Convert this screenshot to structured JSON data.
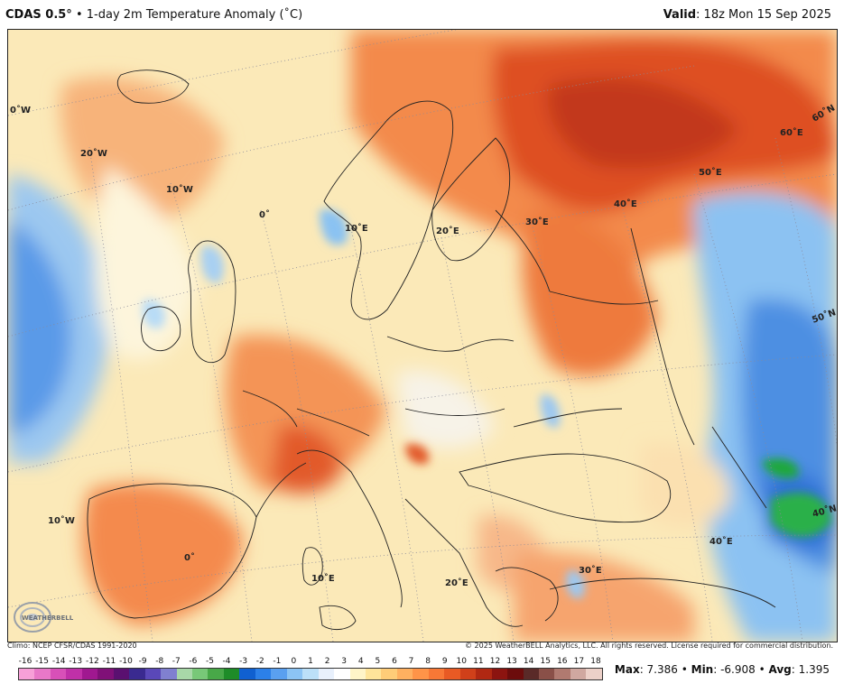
{
  "header": {
    "model": "CDAS 0.5°",
    "separator": "•",
    "product": "1-day 2m Temperature Anomaly (˚C)",
    "valid_label": "Valid",
    "valid_time": ": 18z Mon 15 Sep 2025"
  },
  "map": {
    "lon_labels": [
      "0˚W",
      "20˚W",
      "10˚W",
      "0˚",
      "10˚E",
      "20˚E",
      "30˚E",
      "40˚E",
      "50˚E",
      "60˚E",
      "60˚N",
      "50˚N",
      "40˚N",
      "10˚W",
      "0˚",
      "10˚E",
      "20˚E",
      "30˚E",
      "40˚E"
    ]
  },
  "footer": {
    "climo": "Climo: NCEP CFSR/CDAS 1991-2020",
    "copyright": "© 2025 WeatherBELL Analytics, LLC. All rights reserved. License required for commercial distribution.",
    "logo_text": "WEATHERBELL"
  },
  "colorbar": {
    "labels": [
      "-16",
      "-15",
      "-14",
      "-13",
      "-12",
      "-11",
      "-10",
      "-9",
      "-8",
      "-7",
      "-6",
      "-5",
      "-4",
      "-3",
      "-2",
      "-1",
      "0",
      "1",
      "2",
      "3",
      "4",
      "5",
      "6",
      "7",
      "8",
      "9",
      "10",
      "11",
      "12",
      "13",
      "14",
      "15",
      "16",
      "17",
      "18"
    ],
    "colors": [
      "#f7a0d8",
      "#e878c8",
      "#d850b8",
      "#c030a8",
      "#a01890",
      "#801078",
      "#5a1070",
      "#3a2a90",
      "#5a48b8",
      "#8080d0",
      "#a8d8a8",
      "#78c878",
      "#48a848",
      "#1e8c28",
      "#1060d0",
      "#2c80e8",
      "#5aa0f0",
      "#8cc4f4",
      "#bce0f8",
      "#e8f0fc",
      "#ffffff",
      "#fff4c8",
      "#ffe49a",
      "#ffcc78",
      "#ffb060",
      "#ff9448",
      "#f87836",
      "#e85a24",
      "#d0401a",
      "#b02812",
      "#8c1410",
      "#6c0c0c",
      "#5a2a28",
      "#8a5048",
      "#b07a70",
      "#d0a8a0",
      "#ecd0c8"
    ]
  },
  "stats": {
    "max_label": "Max",
    "max_value": ": 7.386",
    "sep1": " • ",
    "min_label": "Min",
    "min_value": ": -6.908",
    "sep2": " • ",
    "avg_label": "Avg",
    "avg_value": ": 1.395"
  }
}
